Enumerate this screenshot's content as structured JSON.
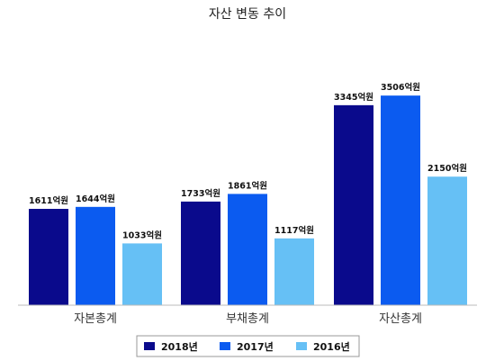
{
  "chart_data": {
    "type": "bar",
    "title": "자산 변동 추이",
    "categories": [
      "자본총계",
      "부채총계",
      "자산총계"
    ],
    "series": [
      {
        "name": "2018년",
        "color": "#0a0a8c",
        "values": [
          1611,
          1733,
          3345
        ],
        "labels": [
          "1611억원",
          "1733억원",
          "3345억원"
        ]
      },
      {
        "name": "2017년",
        "color": "#0b5bf0",
        "values": [
          1644,
          1861,
          3506
        ],
        "labels": [
          "1644억원",
          "1861억원",
          "3506억원"
        ]
      },
      {
        "name": "2016년",
        "color": "#66c0f5",
        "values": [
          1033,
          1117,
          2150
        ],
        "labels": [
          "1033억원",
          "1117억원",
          "2150억원"
        ]
      }
    ],
    "ylim": [
      0,
      3900
    ],
    "grid": false,
    "legend": "bottom-center"
  }
}
